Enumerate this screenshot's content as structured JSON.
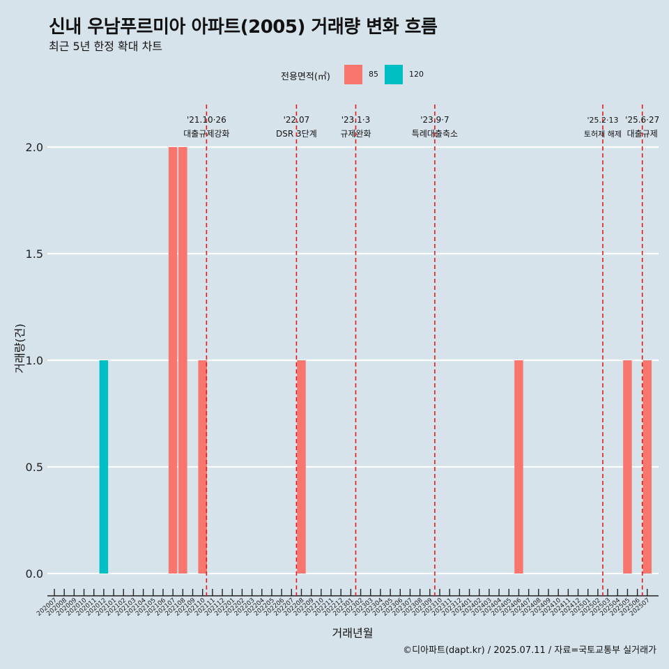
{
  "title": "신내 우남푸르미아 아파트(2005) 거래량 변화 흐름",
  "subtitle": "최근 5년 한정 확대 차트",
  "caption": "©디아파트(dapt.kr) / 2025.07.11 / 자료=국토교통부 실거래가",
  "legend": {
    "title": "전용면적(㎡)",
    "items": [
      {
        "label": "85",
        "color": "#f8766d"
      },
      {
        "label": "120",
        "color": "#00bfc4"
      }
    ]
  },
  "chart_data": {
    "type": "bar",
    "xlabel": "거래년월",
    "ylabel": "거래량(건)",
    "ylim": [
      0,
      2
    ],
    "y_ticks": [
      "0.0",
      "0.5",
      "1.0",
      "1.5",
      "2.0"
    ],
    "grid": "horizontal",
    "legend_position": "top",
    "categories": [
      "202007",
      "202008",
      "202009",
      "202010",
      "202011",
      "202012",
      "202101",
      "202102",
      "202103",
      "202104",
      "202105",
      "202106",
      "202107",
      "202108",
      "202109",
      "202110",
      "202111",
      "202112",
      "202201",
      "202202",
      "202203",
      "202204",
      "202205",
      "202206",
      "202207",
      "202208",
      "202209",
      "202210",
      "202211",
      "202212",
      "202301",
      "202302",
      "202303",
      "202304",
      "202305",
      "202306",
      "202307",
      "202308",
      "202309",
      "202310",
      "202311",
      "202312",
      "202401",
      "202402",
      "202403",
      "202404",
      "202405",
      "202406",
      "202407",
      "202408",
      "202409",
      "202410",
      "202411",
      "202412",
      "202501",
      "202502",
      "202503",
      "202504",
      "202505",
      "202506",
      "202507"
    ],
    "series": [
      {
        "name": "85",
        "color": "#f8766d",
        "values": [
          0,
          0,
          0,
          0,
          0,
          0,
          0,
          0,
          0,
          0,
          0,
          0,
          2,
          2,
          0,
          1,
          0,
          0,
          0,
          0,
          0,
          0,
          0,
          0,
          0,
          1,
          0,
          0,
          0,
          0,
          0,
          0,
          0,
          0,
          0,
          0,
          0,
          0,
          0,
          0,
          0,
          0,
          0,
          0,
          0,
          0,
          0,
          1,
          0,
          0,
          0,
          0,
          0,
          0,
          0,
          0,
          0,
          0,
          1,
          0,
          1
        ]
      },
      {
        "name": "120",
        "color": "#00bfc4",
        "values": [
          0,
          0,
          0,
          0,
          0,
          1,
          0,
          0,
          0,
          0,
          0,
          0,
          0,
          0,
          0,
          0,
          0,
          0,
          0,
          0,
          0,
          0,
          0,
          0,
          0,
          0,
          0,
          0,
          0,
          0,
          0,
          0,
          0,
          0,
          0,
          0,
          0,
          0,
          0,
          0,
          0,
          0,
          0,
          0,
          0,
          0,
          0,
          0,
          0,
          0,
          0,
          0,
          0,
          0,
          0,
          0,
          0,
          0,
          0,
          0,
          0
        ]
      }
    ],
    "annotations": [
      {
        "date": "2021.10.26",
        "index": 15.4,
        "line1": "'21.10·26",
        "line2": "대출규제강화"
      },
      {
        "date": "2022.07",
        "index": 24.5,
        "line1": "'22.07",
        "line2": "DSR 3단계"
      },
      {
        "date": "2023.01.03",
        "index": 30.5,
        "line1": "'23.1·3",
        "line2": "규제완화"
      },
      {
        "date": "2023.09.07",
        "index": 38.5,
        "line1": "'23.9·7",
        "line2": "특례대출축소"
      },
      {
        "date": "2025.02.13",
        "index": 55.5,
        "line1": "'25.2·13",
        "line2": "토허제 해제"
      },
      {
        "date": "2025.06.27",
        "index": 59.5,
        "line1": "'25.6·27",
        "line2": "대출규제"
      }
    ]
  }
}
